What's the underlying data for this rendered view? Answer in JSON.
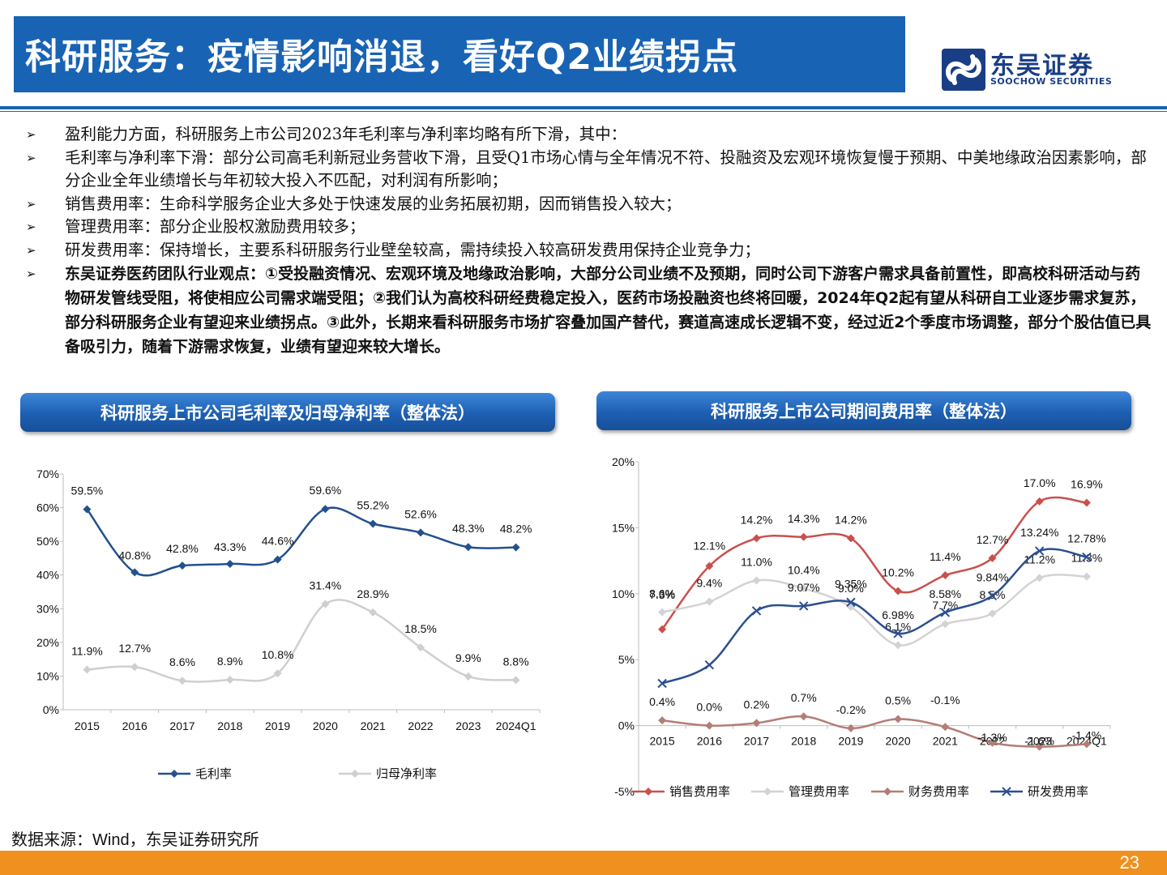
{
  "header": {
    "title": "科研服务：疫情影响消退，看好Q2业绩拐点",
    "logo_cn": "东吴证券",
    "logo_en": "SOOCHOW SECURITIES"
  },
  "bullets": [
    {
      "text": "盈利能力方面，科研服务上市公司2023年毛利率与净利率均略有所下滑，其中：",
      "bold": false
    },
    {
      "text": "毛利率与净利率下滑：部分公司高毛利新冠业务营收下滑，且受Q1市场心情与全年情况不符、投融资及宏观环境恢复慢于预期、中美地缘政治因素影响，部分企业全年业绩增长与年初较大投入不匹配，对利润有所影响；",
      "bold": false
    },
    {
      "text": "销售费用率：生命科学服务企业大多处于快速发展的业务拓展初期，因而销售投入较大；",
      "bold": false
    },
    {
      "text": "管理费用率：部分企业股权激励费用较多；",
      "bold": false
    },
    {
      "text": "研发费用率：保持增长，主要系科研服务行业壁垒较高，需持续投入较高研发费用保持企业竞争力；",
      "bold": false
    },
    {
      "text": "东吴证券医药团队行业观点：①受投融资情况、宏观环境及地缘政治影响，大部分公司业绩不及预期，同时公司下游客户需求具备前置性，即高校科研活动与药物研发管线受阻，将使相应公司需求端受阻；②我们认为高校科研经费稳定投入，医药市场投融资也终将回暖，2024年Q2起有望从科研自工业逐步需求复苏，部分科研服务企业有望迎来业绩拐点。③此外，长期来看科研服务市场扩容叠加国产替代，赛道高速成长逻辑不变，经过近2个季度市场调整，部分个股估值已具备吸引力，随着下游需求恢复，业绩有望迎来较大增长。",
      "bold": true
    }
  ],
  "bullet_marker": "➢",
  "chart_headers": {
    "left": "科研服务上市公司毛利率及归母净利率（整体法）",
    "right": "科研服务上市公司期间费用率（整体法）"
  },
  "chart_data": [
    {
      "type": "line",
      "categories": [
        "2015",
        "2016",
        "2017",
        "2018",
        "2019",
        "2020",
        "2021",
        "2022",
        "2023",
        "2024Q1"
      ],
      "ylim": [
        0,
        70
      ],
      "yticks": [
        "0%",
        "10%",
        "20%",
        "30%",
        "40%",
        "50%",
        "60%",
        "70%"
      ],
      "legend_position": "bottom",
      "series": [
        {
          "name": "毛利率",
          "color": "#23508f",
          "marker": "diamond",
          "values": [
            59.5,
            40.8,
            42.8,
            43.3,
            44.6,
            59.6,
            55.2,
            52.6,
            48.3,
            48.2
          ],
          "labels": [
            "59.5%",
            "40.8%",
            "42.8%",
            "43.3%",
            "44.6%",
            "59.6%",
            "55.2%",
            "52.6%",
            "48.3%",
            "48.2%"
          ]
        },
        {
          "name": "归母净利率",
          "color": "#cfcfcf",
          "marker": "diamond",
          "values": [
            11.9,
            12.7,
            8.6,
            8.9,
            10.8,
            31.4,
            28.9,
            18.5,
            9.9,
            8.8
          ],
          "labels": [
            "11.9%",
            "12.7%",
            "8.6%",
            "8.9%",
            "10.8%",
            "31.4%",
            "28.9%",
            "18.5%",
            "9.9%",
            "8.8%"
          ]
        }
      ]
    },
    {
      "type": "line",
      "categories": [
        "2015",
        "2016",
        "2017",
        "2018",
        "2019",
        "2020",
        "2021",
        "2022",
        "2023",
        "2024Q1"
      ],
      "ylim": [
        -5,
        20
      ],
      "yticks": [
        "-5%",
        "0%",
        "5%",
        "10%",
        "15%",
        "20%"
      ],
      "legend_position": "bottom",
      "series": [
        {
          "name": "销售费用率",
          "color": "#c9504d",
          "marker": "diamond",
          "values": [
            7.3,
            12.1,
            14.2,
            14.3,
            14.2,
            10.2,
            11.4,
            12.7,
            17.0,
            16.9
          ],
          "labels": [
            "7.3%",
            "12.1%",
            "14.2%",
            "14.3%",
            "14.2%",
            "10.2%",
            "11.4%",
            "12.7%",
            "17.0%",
            "16.9%"
          ]
        },
        {
          "name": "管理费用率",
          "color": "#d3d3d3",
          "marker": "diamond",
          "values": [
            8.6,
            9.4,
            11.0,
            10.4,
            9.0,
            6.1,
            7.7,
            8.5,
            11.2,
            11.3
          ],
          "labels": [
            "8.6%",
            "9.4%",
            "11.0%",
            "10.4%",
            "9.0%",
            "6.1%",
            "7.7%",
            "8.5%",
            "11.2%",
            "11.3%"
          ]
        },
        {
          "name": "财务费用率",
          "color": "#b47d76",
          "marker": "diamond",
          "values": [
            0.4,
            0.0,
            0.2,
            0.7,
            -0.2,
            0.5,
            -0.1,
            -1.3,
            -1.6,
            -1.4
          ],
          "labels": [
            "0.4%",
            "0.0%",
            "0.2%",
            "0.7%",
            "-0.2%",
            "0.5%",
            "-0.1%",
            "-1.3%",
            "-1.6%",
            "-1.4%"
          ]
        },
        {
          "name": "研发费用率",
          "color": "#2b4f8f",
          "marker": "x",
          "values": [
            3.2,
            4.6,
            8.7,
            9.07,
            9.35,
            6.98,
            8.58,
            9.84,
            13.24,
            12.78
          ],
          "labels": [
            "",
            "",
            "",
            "9.07%",
            "9.35%",
            "6.98%",
            "8.58%",
            "9.84%",
            "13.24%",
            "12.78%"
          ]
        }
      ]
    }
  ],
  "source": "数据来源：Wind，东吴证券研究所",
  "page_number": "23"
}
